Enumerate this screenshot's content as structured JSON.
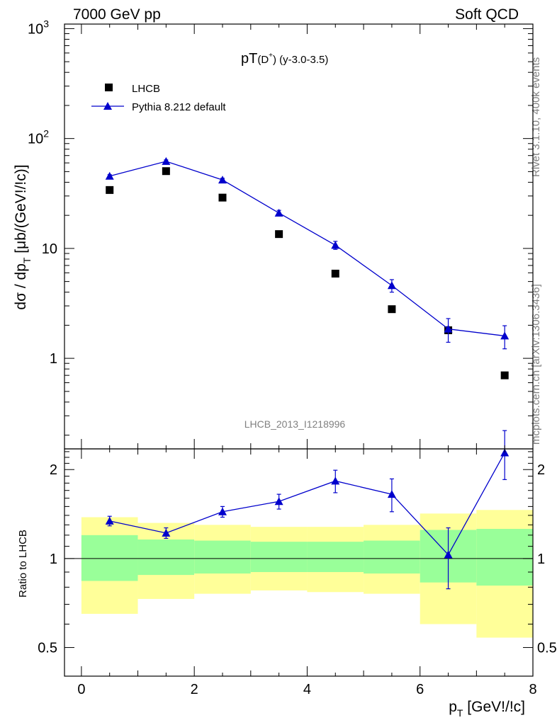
{
  "header": {
    "left": "7000 GeV pp",
    "right": "Soft QCD"
  },
  "side_labels": {
    "rivet": "Rivet 3.1.10,  400k events",
    "mcplots": "mcplots.cern.ch [arXiv:1306.3436]"
  },
  "watermark": "LHCB_2013_I1218996",
  "plot_title": {
    "main": "pT",
    "sub": "(D",
    "sup": "+",
    "tail": ") (y-3.0-3.5)"
  },
  "axes": {
    "ylabel_main": {
      "a": "dσ / dp",
      "sub": "T",
      "b": " [μb/(GeV!/!c)]"
    },
    "ylabel_ratio": "Ratio to LHCB",
    "xlabel": {
      "a": "p",
      "sub": "T",
      "b": " [GeV!/!c]"
    },
    "main_yticks": [
      {
        "v": 1,
        "t": "1"
      },
      {
        "v": 10,
        "t": "10"
      },
      {
        "v": 100,
        "t": "10",
        "sup": "2"
      },
      {
        "v": 1000,
        "t": "10",
        "sup": "3"
      }
    ],
    "ratio_yticks": [
      {
        "v": 0.5,
        "t": "0.5"
      },
      {
        "v": 1,
        "t": "1"
      },
      {
        "v": 2,
        "t": "2"
      }
    ],
    "xticks": [
      {
        "v": 0,
        "t": "0"
      },
      {
        "v": 2,
        "t": "2"
      },
      {
        "v": 4,
        "t": "4"
      },
      {
        "v": 6,
        "t": "6"
      },
      {
        "v": 8,
        "t": "8"
      }
    ]
  },
  "chart_data": [
    {
      "type": "scatter",
      "panel": "main",
      "title": "pT(D+) (y-3.0-3.5)",
      "xlabel": "pT [GeV!/!c]",
      "ylabel": "dσ / dpT [μb/(GeV!/!c)]",
      "xlim": [
        -0.3,
        8.0
      ],
      "ylim": [
        0.15,
        1100
      ],
      "yscale": "log",
      "legend_position": "top-left",
      "series": [
        {
          "name": "LHCB",
          "marker": "square",
          "color": "#000000",
          "x": [
            0.5,
            1.5,
            2.5,
            3.5,
            4.5,
            5.5,
            6.5,
            7.5
          ],
          "y": [
            34.0,
            50.5,
            29.0,
            13.5,
            5.9,
            2.8,
            1.8,
            0.7
          ]
        },
        {
          "name": "Pythia 8.212 default",
          "marker": "triangle",
          "line": true,
          "color": "#0000cc",
          "x": [
            0.5,
            1.5,
            2.5,
            3.5,
            4.5,
            5.5,
            6.5,
            7.5
          ],
          "y": [
            45.5,
            62.0,
            42.0,
            21.0,
            10.7,
            4.6,
            1.85,
            1.6
          ],
          "err": [
            1.4,
            1.9,
            1.5,
            1.2,
            0.9,
            0.6,
            0.45,
            0.38
          ]
        }
      ]
    },
    {
      "type": "line",
      "panel": "ratio",
      "ylabel": "Ratio to LHCB",
      "xlim": [
        -0.3,
        8.0
      ],
      "ylim": [
        0.4,
        2.35
      ],
      "yscale": "log",
      "reference_line": 1,
      "bands": {
        "bins": [
          [
            0,
            1
          ],
          [
            1,
            2
          ],
          [
            2,
            3
          ],
          [
            3,
            4
          ],
          [
            4,
            5
          ],
          [
            5,
            6
          ],
          [
            6,
            7
          ],
          [
            7,
            8
          ]
        ],
        "yellow": [
          [
            0.65,
            1.38
          ],
          [
            0.73,
            1.32
          ],
          [
            0.76,
            1.3
          ],
          [
            0.78,
            1.28
          ],
          [
            0.77,
            1.28
          ],
          [
            0.76,
            1.3
          ],
          [
            0.6,
            1.42
          ],
          [
            0.54,
            1.46
          ]
        ],
        "green": [
          [
            0.84,
            1.2
          ],
          [
            0.88,
            1.16
          ],
          [
            0.89,
            1.15
          ],
          [
            0.9,
            1.14
          ],
          [
            0.9,
            1.14
          ],
          [
            0.89,
            1.15
          ],
          [
            0.83,
            1.25
          ],
          [
            0.81,
            1.26
          ]
        ]
      },
      "series": [
        {
          "name": "Pythia 8.212 default",
          "color": "#0000cc",
          "x": [
            0.5,
            1.5,
            2.5,
            3.5,
            4.5,
            5.5,
            6.5,
            7.5
          ],
          "y": [
            1.34,
            1.22,
            1.44,
            1.56,
            1.83,
            1.65,
            1.03,
            2.28
          ],
          "err": [
            0.05,
            0.05,
            0.06,
            0.09,
            0.16,
            0.21,
            0.24,
            0.43
          ]
        }
      ]
    }
  ]
}
